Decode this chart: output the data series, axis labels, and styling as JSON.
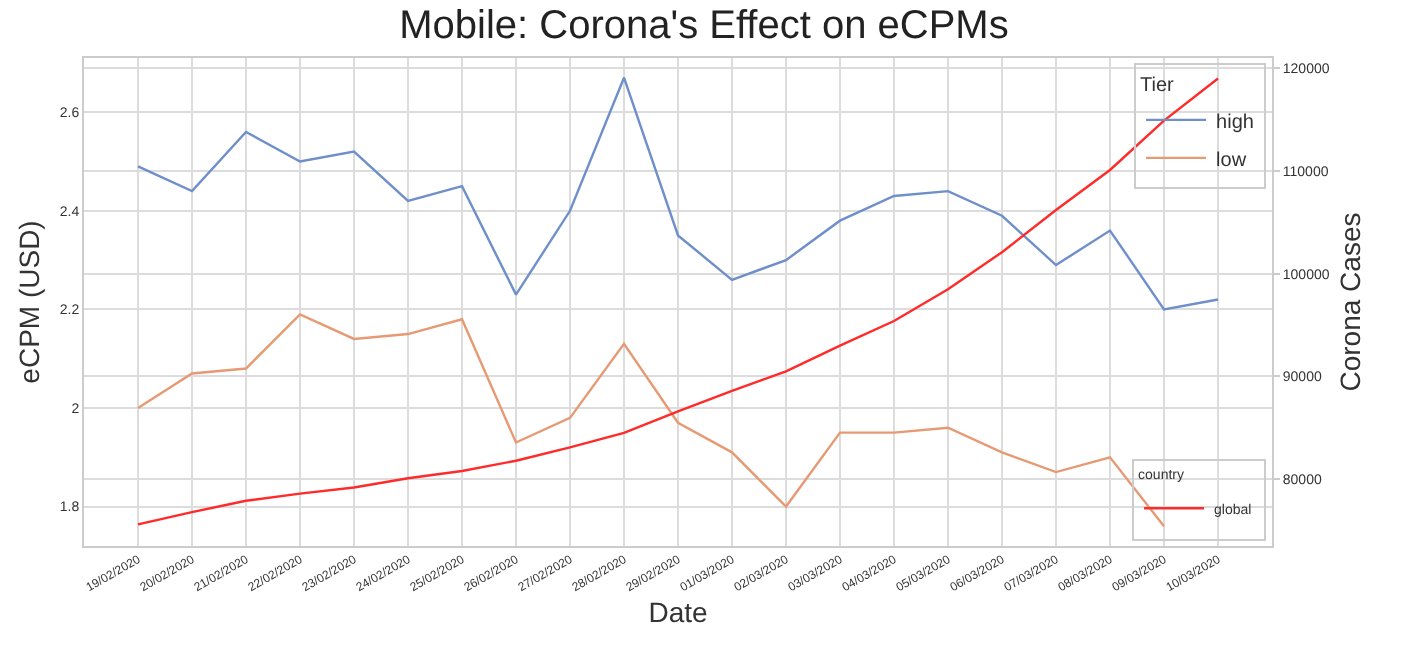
{
  "chart_data": {
    "type": "line",
    "title": "Mobile: Corona's Effect on eCPMs",
    "xlabel": "Date",
    "ylabel": "eCPM (USD)",
    "y2label": "Corona Cases",
    "legend_title": "Tier",
    "annotations": [
      "country"
    ],
    "categories": [
      "19/02/2020",
      "20/02/2020",
      "21/02/2020",
      "22/02/2020",
      "23/02/2020",
      "24/02/2020",
      "25/02/2020",
      "26/02/2020",
      "27/02/2020",
      "28/02/2020",
      "29/02/2020",
      "01/03/2020",
      "02/03/2020",
      "03/03/2020",
      "04/03/2020",
      "05/03/2020",
      "06/03/2020",
      "07/03/2020",
      "08/03/2020",
      "09/03/2020",
      "10/03/2020"
    ],
    "series": [
      {
        "name": "high",
        "color": "#6f8fca",
        "values": [
          2.49,
          2.44,
          2.56,
          2.5,
          2.52,
          2.42,
          2.45,
          2.23,
          2.4,
          2.67,
          2.35,
          2.26,
          2.3,
          2.38,
          2.43,
          2.44,
          2.39,
          2.29,
          2.36,
          2.2,
          2.22
        ]
      },
      {
        "name": "low",
        "color": "#e69a74",
        "values": [
          2.0,
          2.07,
          2.08,
          2.19,
          2.14,
          2.15,
          2.18,
          1.93,
          1.98,
          2.13,
          1.97,
          1.91,
          1.8,
          1.95,
          1.95,
          1.96,
          1.91,
          1.87,
          1.9,
          1.76,
          null
        ]
      },
      {
        "name": "global",
        "color": "#ff2a2a",
        "axis": "y2",
        "values": [
          75600,
          76800,
          77900,
          78600,
          79200,
          80100,
          80800,
          81800,
          83100,
          84500,
          86600,
          88600,
          90500,
          93000,
          95400,
          98500,
          102100,
          106200,
          110100,
          114900,
          119000
        ]
      }
    ],
    "ylim": [
      1.72,
      2.71
    ],
    "yticks": [
      1.8,
      2.0,
      2.2,
      2.4,
      2.6
    ],
    "y2lim": [
      73500,
      121000
    ],
    "y2ticks": [
      80000,
      90000,
      100000,
      110000,
      120000
    ],
    "grid": true,
    "legend": "right",
    "line_style": "solid",
    "marker": "none"
  }
}
